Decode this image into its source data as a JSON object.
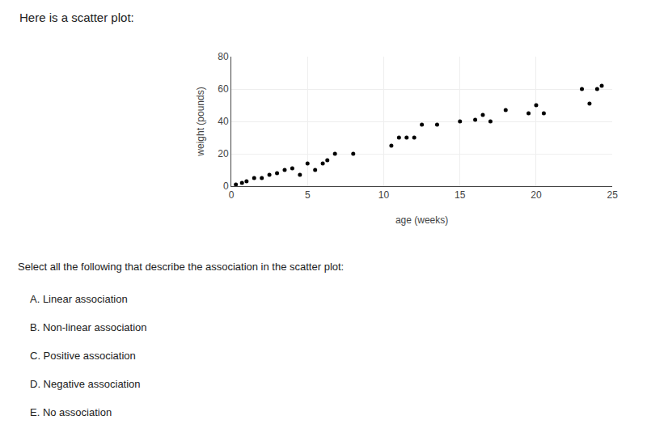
{
  "chart_data": {
    "type": "scatter",
    "title": "Here is a scatter plot:",
    "xlabel": "age (weeks)",
    "ylabel": "weight (pounds)",
    "x": [
      0.3,
      0.7,
      1.0,
      1.5,
      2.0,
      2.5,
      3.0,
      3.5,
      4.0,
      4.5,
      5.0,
      5.5,
      6.0,
      6.3,
      6.8,
      8.0,
      10.5,
      11.0,
      11.5,
      12.0,
      12.5,
      13.5,
      15.0,
      16.0,
      16.5,
      17.0,
      18.0,
      19.5,
      20.0,
      20.5,
      23.0,
      23.5,
      24.0,
      24.3
    ],
    "values": [
      1,
      2,
      3,
      5,
      5,
      7,
      8,
      10,
      11,
      7,
      14,
      10,
      14,
      16,
      20,
      20,
      25,
      30,
      30,
      30,
      38,
      38,
      40,
      41,
      44,
      40,
      47,
      45,
      50,
      45,
      60,
      51,
      60,
      62
    ],
    "color": "#000000",
    "xlim": [
      0,
      25
    ],
    "ylim": [
      0,
      80
    ],
    "xticks": [
      0,
      5,
      10,
      15,
      20,
      25
    ],
    "yticks": [
      0,
      20,
      40,
      60,
      80
    ],
    "grid": true,
    "annotations": [
      "Select all the following that describe the association in the scatter plot:",
      "A. Linear association",
      "B. Non-linear association",
      "C. Positive association",
      "D. Negative association",
      "E. No association"
    ]
  }
}
